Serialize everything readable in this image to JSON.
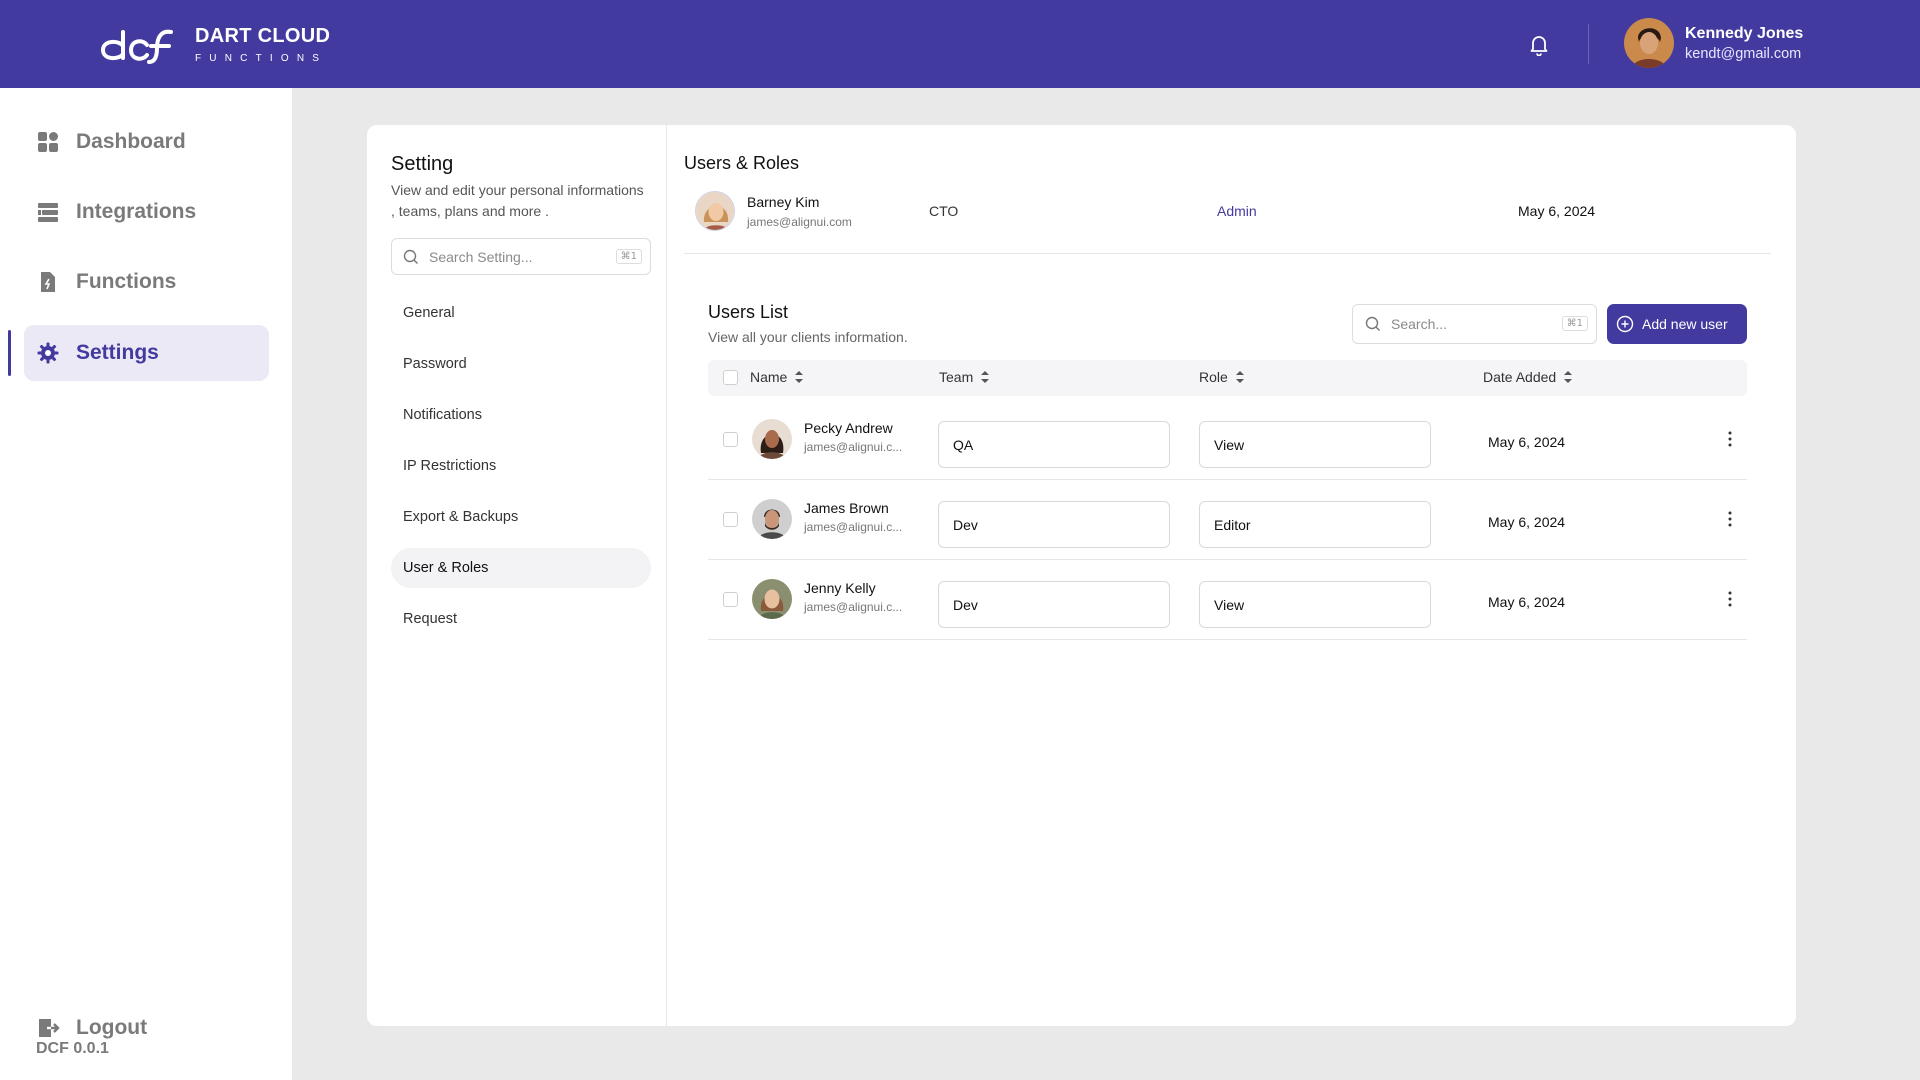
{
  "header": {
    "brand_title": "DART CLOUD",
    "brand_sub": "FUNCTIONS",
    "user_name": "Kennedy Jones",
    "user_email": "kendt@gmail.com"
  },
  "sidebar": {
    "items": [
      {
        "label": "Dashboard",
        "icon": "dashboard-icon"
      },
      {
        "label": "Integrations",
        "icon": "integrations-icon"
      },
      {
        "label": "Functions",
        "icon": "functions-icon"
      },
      {
        "label": "Settings",
        "icon": "gear-icon",
        "active": true
      }
    ],
    "version": "DCF 0.0.1",
    "logout_label": "Logout"
  },
  "settings": {
    "title": "Setting",
    "description": "View and edit your personal informations , teams, plans and more .",
    "search_placeholder": "Search Setting...",
    "search_shortcut": "⌘1",
    "menu": [
      {
        "label": "General"
      },
      {
        "label": "Password"
      },
      {
        "label": "Notifications"
      },
      {
        "label": "IP Restrictions"
      },
      {
        "label": "Export & Backups"
      },
      {
        "label": "User & Roles",
        "active": true
      },
      {
        "label": "Request"
      }
    ]
  },
  "users_roles": {
    "title": "Users & Roles",
    "owner": {
      "name": "Barney Kim",
      "email": "james@alignui.com",
      "title": "CTO",
      "role": "Admin",
      "date": "May 6, 2024"
    }
  },
  "users_list": {
    "title": "Users List",
    "description": "View all your clients information.",
    "search_placeholder": "Search...",
    "search_shortcut": "⌘1",
    "add_button": "Add new user",
    "columns": [
      "Name",
      "Team",
      "Role",
      "Date Added"
    ],
    "rows": [
      {
        "name": "Pecky Andrew",
        "email": "james@alignui.c...",
        "team": "QA",
        "role": "View",
        "date": "May 6, 2024"
      },
      {
        "name": "James Brown",
        "email": "james@alignui.c...",
        "team": "Dev",
        "role": "Editor",
        "date": "May 6, 2024"
      },
      {
        "name": "Jenny Kelly",
        "email": "james@alignui.c...",
        "team": "Dev",
        "role": "View",
        "date": "May 6, 2024"
      }
    ]
  },
  "colors": {
    "brand": "#433a9f",
    "active_nav_bg": "#ebe9f6",
    "page_bg": "#e9e9e9"
  }
}
